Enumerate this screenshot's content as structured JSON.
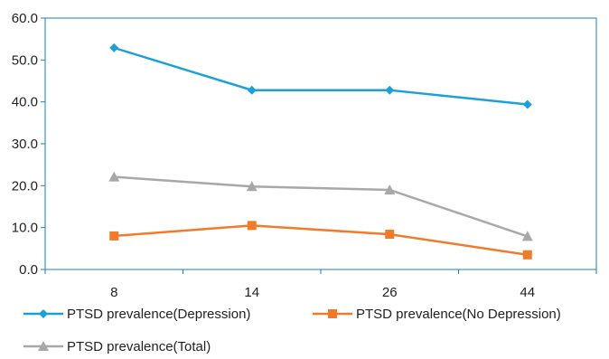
{
  "chart_data": {
    "type": "line",
    "title": "",
    "xlabel": "",
    "ylabel": "",
    "categories": [
      "8",
      "14",
      "26",
      "44"
    ],
    "ylim": [
      0,
      60
    ],
    "y_ticks": [
      "0.0",
      "10.0",
      "20.0",
      "30.0",
      "40.0",
      "50.0",
      "60.0"
    ],
    "grid": false,
    "legend_position": "bottom",
    "series": [
      {
        "name": "PTSD prevalence(Depression)",
        "values": [
          52.9,
          42.8,
          42.8,
          39.4
        ],
        "color": "#1ba1d8",
        "marker": "diamond"
      },
      {
        "name": "PTSD prevalence(No Depression)",
        "values": [
          8.0,
          10.5,
          8.4,
          3.5
        ],
        "color": "#f07b2b",
        "marker": "square"
      },
      {
        "name": "PTSD prevalence(Total)",
        "values": [
          22.1,
          19.8,
          19.0,
          7.9
        ],
        "color": "#a8a8a8",
        "marker": "triangle"
      }
    ]
  }
}
